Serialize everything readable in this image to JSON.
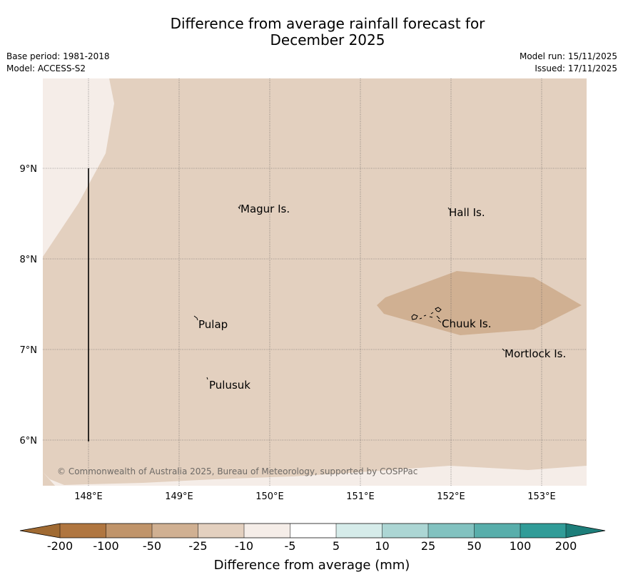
{
  "header": {
    "title_line1": "Difference from average rainfall forecast for",
    "title_line2": "December 2025",
    "base_period": "Base period: 1981-2018",
    "model": "Model: ACCESS-S2",
    "model_run": "Model run: 15/11/2025",
    "issued": "Issued: 17/11/2025"
  },
  "map": {
    "lat_labels": [
      "9°N",
      "8°N",
      "7°N",
      "6°N"
    ],
    "lon_labels": [
      "148°E",
      "149°E",
      "150°E",
      "151°E",
      "152°E",
      "153°E"
    ],
    "places": [
      "Magur Is.",
      "Hall Is.",
      "Pulap",
      "Chuuk Is.",
      "Mortlock Is.",
      "Pulusuk"
    ],
    "copyright": "© Commonwealth of Australia 2025, Bureau of Meteorology, supported by COSPPac",
    "colors": {
      "background_class": "#e3d0bf",
      "light_class": "#f5ede8",
      "darker_class": "#d0b092"
    }
  },
  "colorbar": {
    "labels": [
      "-200",
      "-100",
      "-50",
      "-25",
      "-10",
      "-5",
      "5",
      "10",
      "25",
      "50",
      "100",
      "200"
    ],
    "colors": [
      "#a06a32",
      "#b07640",
      "#c0946a",
      "#d0b092",
      "#e3d0bf",
      "#f5ede8",
      "#ffffff",
      "#d6ecea",
      "#acd6d4",
      "#82c2c0",
      "#58aeab",
      "#319c98",
      "#1d7e7a"
    ],
    "title": "Difference from average (mm)"
  }
}
